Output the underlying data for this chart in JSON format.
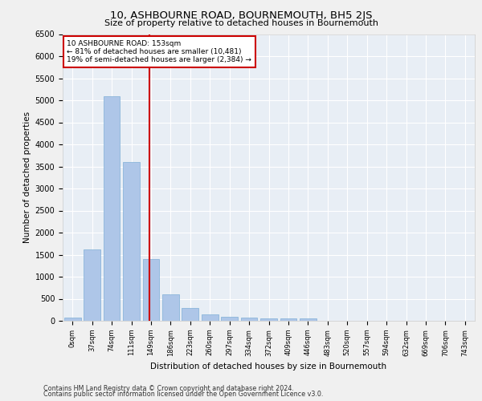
{
  "title": "10, ASHBOURNE ROAD, BOURNEMOUTH, BH5 2JS",
  "subtitle": "Size of property relative to detached houses in Bournemouth",
  "xlabel": "Distribution of detached houses by size in Bournemouth",
  "ylabel": "Number of detached properties",
  "bar_labels": [
    "0sqm",
    "37sqm",
    "74sqm",
    "111sqm",
    "149sqm",
    "186sqm",
    "223sqm",
    "260sqm",
    "297sqm",
    "334sqm",
    "372sqm",
    "409sqm",
    "446sqm",
    "483sqm",
    "520sqm",
    "557sqm",
    "594sqm",
    "632sqm",
    "669sqm",
    "706sqm",
    "743sqm"
  ],
  "bar_values": [
    75,
    1625,
    5100,
    3600,
    1400,
    600,
    300,
    150,
    100,
    70,
    50,
    60,
    60,
    0,
    0,
    0,
    0,
    0,
    0,
    0,
    0
  ],
  "bar_color": "#aec6e8",
  "bar_edgecolor": "#7fafd6",
  "background_color": "#e8eef5",
  "grid_color": "#ffffff",
  "vline_color": "#cc0000",
  "annotation_title": "10 ASHBOURNE ROAD: 153sqm",
  "annotation_line1": "← 81% of detached houses are smaller (10,481)",
  "annotation_line2": "19% of semi-detached houses are larger (2,384) →",
  "annotation_box_color": "#ffffff",
  "annotation_box_edgecolor": "#cc0000",
  "ylim": [
    0,
    6500
  ],
  "yticks": [
    0,
    500,
    1000,
    1500,
    2000,
    2500,
    3000,
    3500,
    4000,
    4500,
    5000,
    5500,
    6000,
    6500
  ],
  "footer1": "Contains HM Land Registry data © Crown copyright and database right 2024.",
  "footer2": "Contains public sector information licensed under the Open Government Licence v3.0.",
  "fig_facecolor": "#f0f0f0"
}
